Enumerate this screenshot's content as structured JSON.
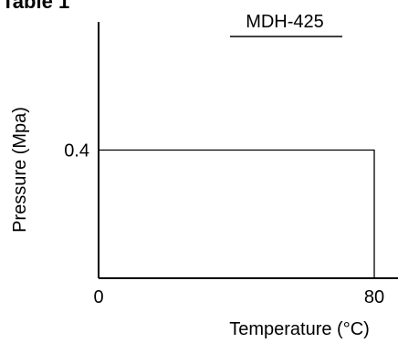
{
  "heading": "Table 1",
  "chart_data": {
    "type": "line",
    "title": "MDH-425",
    "xlabel": "Temperature (°C)",
    "ylabel": "Pressure (Mpa)",
    "x_ticks": [
      {
        "value": 0,
        "label": "0"
      },
      {
        "value": 80,
        "label": "80"
      }
    ],
    "y_ticks": [
      {
        "value": 0.4,
        "label": "0.4"
      }
    ],
    "xlim": [
      0,
      80
    ],
    "ylim": [
      0,
      0.8
    ],
    "grid": false,
    "series": [
      {
        "x": [
          0,
          80,
          80
        ],
        "y": [
          0.4,
          0.4,
          0
        ]
      }
    ],
    "colors": {
      "axis": "#000000",
      "line": "#000000"
    }
  }
}
